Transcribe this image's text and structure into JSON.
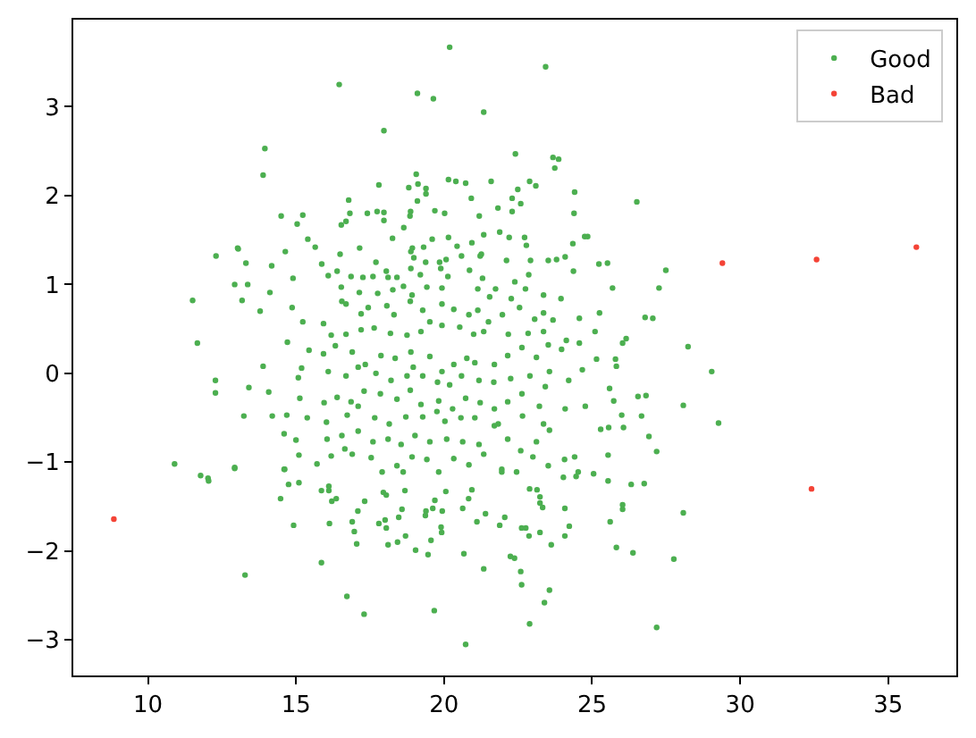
{
  "chart_data": {
    "type": "scatter",
    "series": [
      {
        "name": "Good",
        "color": "#4caf50",
        "x": [
          20.19,
          23.43,
          16.46,
          19.1,
          19.64,
          21.34,
          17.97,
          13.95,
          13.89,
          22.41,
          23.68,
          23.87,
          23.74,
          19.06,
          20.15,
          20.4,
          20.73,
          21.59,
          22.89,
          23.1,
          17.8,
          18.81,
          19.12,
          19.39,
          19.39,
          22.49,
          24.41,
          26.51,
          16.78,
          19.1,
          20.92,
          22.3,
          22.59,
          21.82,
          21.19,
          22.3,
          24.39,
          14.5,
          15.23,
          15.04,
          15.4,
          15.65,
          13.03,
          16.53,
          16.69,
          16.82,
          17.41,
          17.74,
          17.97,
          17.97,
          18.64,
          18.85,
          18.87,
          19.69,
          20.02,
          18.26,
          19.6,
          20.15,
          21.34,
          21.88,
          22.2,
          22.72,
          22.78,
          24.35,
          24.75,
          20.44,
          20.94,
          17.15,
          18.93,
          19.31,
          12.3,
          13.05,
          13.31,
          12.93,
          13.37,
          13.18,
          11.51,
          13.79,
          14.12,
          14.18,
          14.64,
          14.9,
          11.67,
          10.9,
          12.28,
          12.28,
          13.41,
          13.24,
          12.93,
          13.89,
          14.08,
          14.2,
          14.6,
          14.6,
          15.1,
          15.71,
          27.49,
          27.26,
          27.05,
          28.24,
          29.04,
          29.27,
          28.08,
          27.18,
          26.92,
          26.82,
          26.55,
          26.67,
          26.79,
          25.69,
          25.23,
          25.52,
          24.85,
          26.03,
          26.15,
          25.79,
          25.82,
          25.59,
          25.73,
          25.15,
          25.1,
          25.25,
          25.56,
          25.29,
          25.54,
          26.0,
          26.06,
          14.87,
          15.23,
          14.71,
          15.44,
          15.08,
          15.13,
          15.38,
          15.0,
          14.69,
          15.19,
          18.88,
          21.22,
          15.87,
          16.49,
          17.7,
          18.05,
          18.98,
          19.38,
          19.85,
          20.07,
          20.59,
          21.26,
          22.11,
          22.92,
          23.52,
          23.8,
          24.09,
          16.09,
          16.39,
          16.86,
          17.26,
          17.6,
          18.11,
          18.41,
          18.88,
          19.2,
          19.89,
          20.13,
          20.86,
          21.3,
          21.74,
          22.39,
          22.86,
          22.75,
          23.36,
          23.95,
          24.37,
          16.53,
          17.14,
          17.76,
          18.27,
          18.63,
          18.92,
          19.42,
          19.93,
          21.14,
          21.54,
          22.27,
          15.93,
          16.55,
          16.69,
          17.2,
          17.44,
          18.07,
          18.31,
          18.86,
          19.28,
          19.52,
          19.93,
          20.33,
          20.84,
          21.14,
          21.5,
          21.97,
          22.55,
          23.06,
          23.36,
          23.68,
          24.57,
          16.19,
          16.69,
          17.2,
          17.64,
          18.19,
          18.75,
          19.22,
          19.93,
          20.53,
          21.0,
          21.34,
          22.17,
          22.84,
          23.36,
          24.13,
          15.93,
          16.33,
          16.9,
          17.34,
          17.87,
          18.35,
          18.88,
          18.96,
          19.52,
          19.93,
          20.33,
          20.77,
          21.04,
          21.7,
          22.15,
          22.63,
          23.12,
          23.52,
          23.97,
          24.57,
          24.67,
          23.56,
          16.09,
          16.69,
          17.1,
          17.7,
          18.21,
          18.75,
          19.28,
          19.78,
          20.19,
          20.59,
          21.18,
          21.68,
          22.25,
          22.9,
          23.42,
          24.21,
          15.95,
          16.39,
          16.86,
          17.3,
          17.85,
          18.41,
          18.86,
          19.22,
          19.82,
          20.29,
          20.73,
          21.22,
          21.7,
          22.15,
          22.63,
          23.22,
          24.09,
          24.77,
          16.03,
          16.73,
          17.1,
          17.66,
          18.15,
          18.71,
          19.28,
          19.76,
          20.03,
          20.57,
          21.04,
          21.83,
          22.65,
          23.36,
          16.05,
          16.55,
          16.65,
          17.1,
          17.6,
          18.11,
          18.55,
          19.02,
          19.52,
          20.09,
          20.63,
          21.18,
          21.7,
          22.15,
          22.59,
          23.12,
          23.56,
          24.07,
          24.41,
          16.19,
          16.9,
          17.54,
          17.91,
          18.41,
          18.92,
          19.42,
          19.82,
          20.33,
          20.84,
          21.34,
          21.95,
          22.45,
          23.0,
          23.52,
          24.03,
          24.53,
          11.78,
          12.03,
          12.05,
          12.93,
          14.48,
          14.75,
          14.92,
          15.1,
          14.62,
          13.28,
          15.86,
          16.11,
          16.11,
          16.13,
          16.21,
          16.36,
          15.86,
          16.72,
          17.3,
          16.9,
          16.97,
          17.05,
          17.09,
          17.32,
          17.8,
          18.01,
          18.05,
          18.11,
          17.95,
          18.05,
          18.43,
          18.47,
          18.58,
          18.7,
          18.62,
          18.68,
          19.04,
          19.39,
          19.37,
          19.46,
          19.56,
          19.67,
          19.62,
          19.69,
          19.9,
          19.92,
          19.94,
          20.06,
          20.63,
          20.67,
          20.73,
          20.83,
          20.94,
          21.11,
          21.34,
          21.4,
          21.88,
          22.05,
          21.95,
          22.24,
          22.38,
          22.62,
          22.59,
          22.62,
          22.76,
          22.87,
          22.89,
          23.14,
          23.24,
          23.24,
          23.33,
          23.24,
          22.89,
          23.39,
          23.56,
          23.62,
          24.08,
          24.08,
          24.23,
          24.46,
          25.05,
          25.61,
          25.54,
          25.82,
          26.03,
          26.03,
          26.32,
          26.38,
          26.76,
          27.18,
          27.76,
          28.08
        ],
        "values": [
          3.67,
          3.45,
          3.25,
          3.15,
          3.09,
          2.94,
          2.73,
          2.53,
          2.23,
          2.47,
          2.43,
          2.41,
          2.31,
          2.24,
          2.18,
          2.16,
          2.14,
          2.16,
          2.16,
          2.11,
          2.12,
          2.09,
          2.13,
          2.08,
          2.02,
          2.07,
          2.04,
          1.93,
          1.95,
          1.94,
          1.97,
          1.97,
          1.91,
          1.86,
          1.77,
          1.82,
          1.8,
          1.77,
          1.78,
          1.68,
          1.51,
          1.42,
          1.41,
          1.67,
          1.71,
          1.8,
          1.8,
          1.82,
          1.81,
          1.72,
          1.64,
          1.77,
          1.82,
          1.83,
          1.8,
          1.52,
          1.51,
          1.53,
          1.56,
          1.59,
          1.53,
          1.53,
          1.44,
          1.46,
          1.54,
          1.43,
          1.47,
          1.41,
          1.41,
          1.42,
          1.32,
          1.4,
          1.24,
          1.0,
          1.0,
          0.82,
          0.82,
          0.7,
          0.91,
          1.21,
          1.37,
          1.07,
          0.34,
          -1.02,
          -0.08,
          -0.22,
          -0.16,
          -0.48,
          -1.07,
          0.08,
          -0.21,
          -0.48,
          -0.68,
          -1.08,
          -0.92,
          -1.02,
          1.16,
          0.96,
          0.62,
          0.3,
          0.02,
          -0.56,
          -0.36,
          -0.88,
          -0.71,
          -0.25,
          -0.26,
          -0.48,
          0.63,
          0.96,
          1.23,
          1.24,
          1.54,
          0.34,
          0.39,
          0.16,
          0.08,
          -0.17,
          -0.31,
          0.16,
          0.47,
          0.68,
          -0.61,
          -0.63,
          -0.92,
          -0.47,
          -0.61,
          0.74,
          0.58,
          0.35,
          0.26,
          -0.05,
          -0.28,
          -0.5,
          -0.75,
          -0.47,
          0.06,
          1.37,
          1.32,
          1.23,
          1.34,
          1.25,
          1.15,
          1.3,
          1.25,
          1.25,
          1.28,
          1.32,
          1.34,
          1.27,
          1.27,
          1.27,
          1.28,
          1.31,
          1.1,
          1.15,
          1.09,
          1.08,
          1.09,
          1.08,
          1.08,
          1.18,
          1.11,
          1.18,
          1.09,
          1.16,
          1.07,
          0.95,
          1.03,
          1.11,
          0.95,
          0.88,
          0.84,
          1.15,
          0.97,
          0.91,
          0.9,
          0.94,
          0.98,
          0.88,
          0.97,
          0.96,
          0.95,
          0.86,
          0.84,
          0.56,
          0.81,
          0.78,
          0.67,
          0.74,
          0.76,
          0.66,
          0.81,
          0.71,
          0.58,
          0.78,
          0.72,
          0.66,
          0.71,
          0.58,
          0.66,
          0.74,
          0.61,
          0.68,
          0.6,
          0.62,
          0.43,
          0.44,
          0.49,
          0.51,
          0.45,
          0.43,
          0.47,
          0.54,
          0.52,
          0.44,
          0.47,
          0.44,
          0.45,
          0.47,
          0.37,
          0.22,
          0.31,
          0.24,
          0.1,
          0.2,
          0.17,
          0.24,
          0.07,
          0.19,
          0.02,
          0.1,
          0.17,
          0.12,
          0.1,
          0.2,
          0.29,
          0.18,
          0.32,
          0.27,
          0.34,
          0.04,
          0.02,
          0.02,
          -0.03,
          0.07,
          0.0,
          -0.08,
          -0.03,
          -0.03,
          -0.1,
          -0.13,
          -0.03,
          -0.08,
          -0.1,
          -0.06,
          -0.03,
          -0.15,
          -0.08,
          -0.33,
          -0.27,
          -0.32,
          -0.2,
          -0.23,
          -0.29,
          -0.19,
          -0.35,
          -0.31,
          -0.4,
          -0.28,
          -0.33,
          -0.4,
          -0.32,
          -0.23,
          -0.37,
          -0.4,
          -0.37,
          -0.55,
          -0.47,
          -0.37,
          -0.5,
          -0.57,
          -0.49,
          -0.49,
          -0.43,
          -0.54,
          -0.5,
          -0.5,
          -0.57,
          -0.48,
          -0.57,
          -0.74,
          -0.7,
          -0.85,
          -0.65,
          -0.77,
          -0.74,
          -0.8,
          -0.7,
          -0.77,
          -0.74,
          -0.77,
          -0.8,
          -0.59,
          -0.74,
          -0.87,
          -0.77,
          -0.64,
          -0.97,
          -0.94,
          -0.93,
          -0.91,
          -0.95,
          -1.11,
          -1.04,
          -0.94,
          -0.97,
          -1.11,
          -0.96,
          -1.03,
          -0.91,
          -1.11,
          -1.11,
          -0.94,
          -1.04,
          -1.17,
          -1.11,
          -1.15,
          -1.18,
          -1.21,
          -1.06,
          -1.41,
          -1.25,
          -1.71,
          -1.23,
          -1.08,
          -2.27,
          -1.32,
          -1.27,
          -1.32,
          -1.69,
          -1.44,
          -1.41,
          -2.13,
          -2.51,
          -2.71,
          -1.67,
          -1.78,
          -1.92,
          -1.55,
          -1.44,
          -1.69,
          -1.65,
          -1.74,
          -1.93,
          -1.34,
          -1.37,
          -1.9,
          -1.62,
          -1.53,
          -1.83,
          -1.11,
          -1.32,
          -1.99,
          -1.55,
          -1.6,
          -2.04,
          -1.88,
          -2.67,
          -1.52,
          -1.43,
          -1.73,
          -1.79,
          -1.55,
          -1.33,
          -1.52,
          -2.03,
          -3.05,
          -1.41,
          -1.31,
          -1.67,
          -2.2,
          -1.58,
          -1.71,
          -1.62,
          -1.08,
          -2.06,
          -2.08,
          -1.74,
          -2.23,
          -2.38,
          -1.74,
          -1.83,
          -1.3,
          -1.31,
          -1.39,
          -1.46,
          -1.51,
          -1.79,
          -2.82,
          -2.58,
          -2.44,
          -1.93,
          -1.52,
          -1.83,
          -1.72,
          -1.16,
          -1.13,
          -1.67,
          -1.21,
          -1.96,
          -1.48,
          -1.53,
          -1.25,
          -2.02,
          -1.24,
          -2.86,
          -2.09,
          -1.57
        ]
      },
      {
        "name": "Bad",
        "color": "#f44336",
        "x": [
          8.85,
          32.41,
          29.4,
          32.58,
          35.95
        ],
        "values": [
          -1.64,
          -1.3,
          1.24,
          1.28,
          1.42
        ]
      }
    ],
    "xlim": [
      7.48,
      37.3
    ],
    "ylim": [
      -3.4,
      3.98
    ],
    "xticks": [
      10,
      15,
      20,
      25,
      30,
      35
    ],
    "yticks": [
      {
        "value": -3,
        "label": "−3"
      },
      {
        "value": -2,
        "label": "−2"
      },
      {
        "value": -1,
        "label": "−1"
      },
      0,
      1,
      2,
      3
    ],
    "legend": "top right",
    "marker": "circle"
  }
}
